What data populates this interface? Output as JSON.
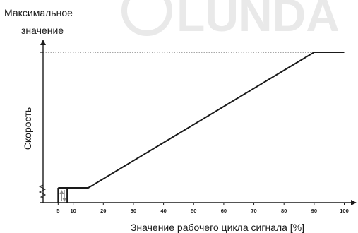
{
  "watermark": {
    "text": "LUNDA",
    "color": "#e9e9e9"
  },
  "chart_data": {
    "type": "line",
    "title": "",
    "xlabel": "Значение рабочего цикла сигнала [%]",
    "ylabel": "Скорость",
    "y_top_label_line1": "Максимальное",
    "y_top_label_line2": "значение",
    "x_ticks": [
      "5",
      "10",
      "20",
      "30",
      "40",
      "50",
      "60",
      "70",
      "80",
      "90",
      "100"
    ],
    "xlim": [
      0,
      103
    ],
    "ylim": [
      0,
      100
    ],
    "grid": false,
    "series": [
      {
        "x": [
          5,
          15,
          90,
          100
        ],
        "y": [
          10,
          10,
          100,
          100
        ]
      }
    ],
    "hysteresis_band": {
      "x_from": 5,
      "x_to": 8,
      "y": 10
    },
    "max_reference_line_style": "dotted",
    "line_color": "#1a1a1a"
  }
}
